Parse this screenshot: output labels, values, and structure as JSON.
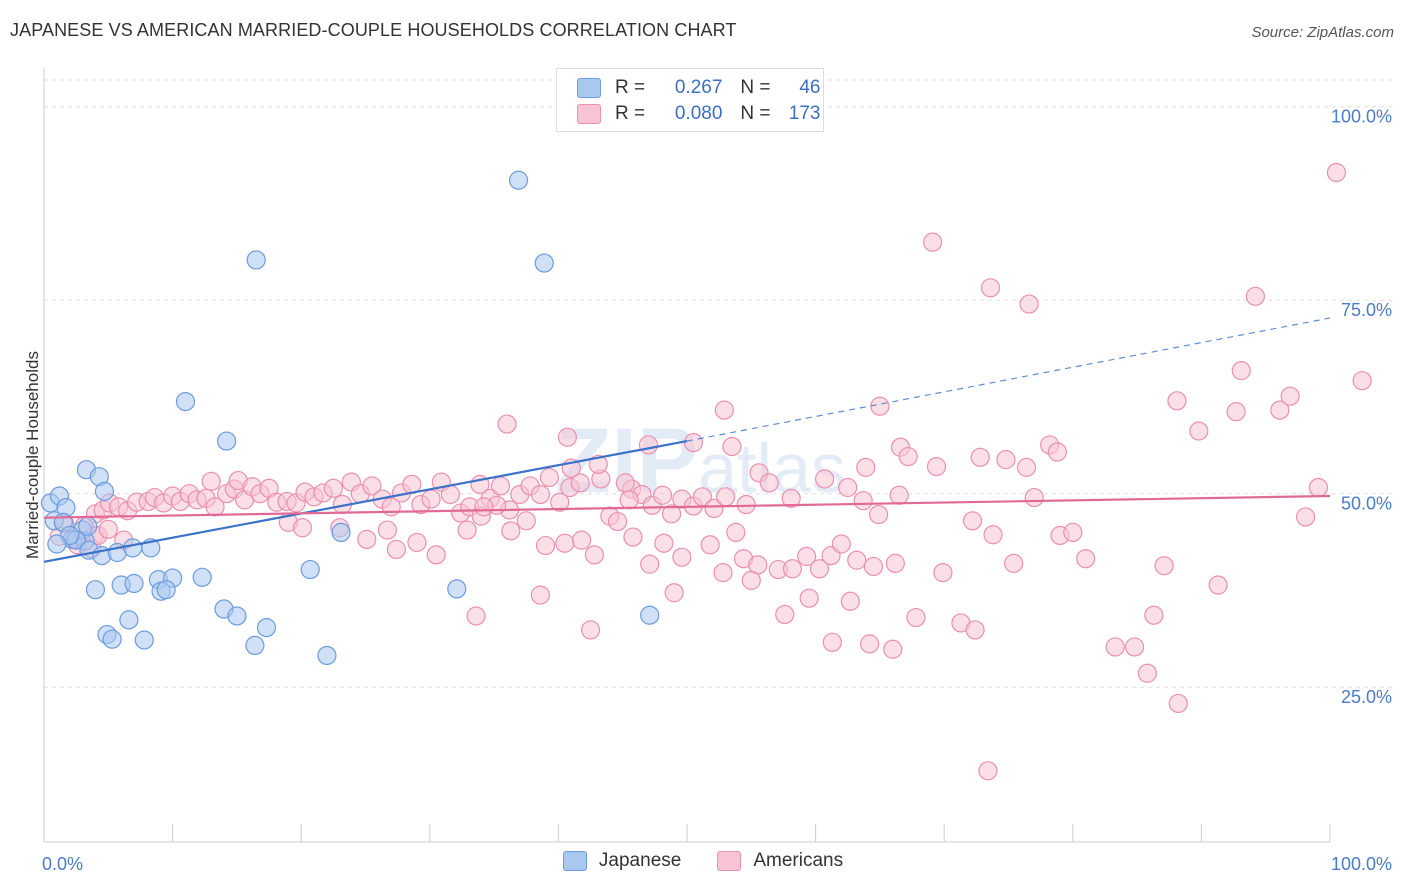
{
  "title": "JAPANESE VS AMERICAN MARRIED-COUPLE HOUSEHOLDS CORRELATION CHART",
  "source": "Source: ZipAtlas.com",
  "watermark": "ZIPatlas",
  "legend": {
    "japanese": {
      "r_label": "R =",
      "r_value": "0.267",
      "n_label": "N =",
      "n_value": "46"
    },
    "americans": {
      "r_label": "R =",
      "r_value": "0.080",
      "n_label": "N =",
      "n_value": "173"
    }
  },
  "colors": {
    "japanese_fill": "#a9c8f0",
    "japanese_stroke": "#6b9be0",
    "japanese_line": "#3a72c8",
    "americans_fill": "#f8c4d4",
    "americans_stroke": "#ec8fb0",
    "americans_line": "#e06a95",
    "grid": "#dddddd",
    "axis_label": "#4a7cc9"
  },
  "chart_data": {
    "type": "scatter",
    "title": "JAPANESE VS AMERICAN MARRIED-COUPLE HOUSEHOLDS CORRELATION CHART",
    "xlabel": "",
    "ylabel": "Married-couple Households",
    "xlim": [
      0,
      100
    ],
    "ylim": [
      5,
      105
    ],
    "x_tick_labels": [
      "0.0%",
      "100.0%"
    ],
    "y_ticks": [
      25,
      50,
      75,
      100
    ],
    "y_tick_labels": [
      "25.0%",
      "50.0%",
      "75.0%",
      "100.0%"
    ],
    "grid": "horizontal dashed",
    "legend_position": "top-center and bottom",
    "series": [
      {
        "name": "Japanese",
        "r": 0.267,
        "n": 46,
        "trend": {
          "x0": 0,
          "y0": 41.2,
          "x1": 50,
          "y1": 56.8,
          "dashed_to_x": 100,
          "dashed_to_y": 72.7
        },
        "points": [
          [
            0.5,
            48.8
          ],
          [
            1.2,
            49.7
          ],
          [
            1.7,
            48.2
          ],
          [
            0.8,
            46.5
          ],
          [
            1.5,
            46.3
          ],
          [
            2.2,
            44.1
          ],
          [
            3.0,
            45.3
          ],
          [
            3.2,
            43.9
          ],
          [
            2.5,
            44.0
          ],
          [
            3.4,
            45.8
          ],
          [
            3.3,
            53.1
          ],
          [
            4.3,
            52.2
          ],
          [
            4.7,
            50.3
          ],
          [
            3.5,
            42.7
          ],
          [
            4.5,
            42.0
          ],
          [
            5.7,
            42.4
          ],
          [
            6.9,
            43.0
          ],
          [
            8.3,
            43.0
          ],
          [
            4.0,
            37.6
          ],
          [
            6.0,
            38.2
          ],
          [
            7.0,
            38.4
          ],
          [
            8.9,
            38.9
          ],
          [
            10.0,
            39.1
          ],
          [
            9.1,
            37.4
          ],
          [
            9.5,
            37.6
          ],
          [
            12.3,
            39.2
          ],
          [
            6.6,
            33.7
          ],
          [
            4.9,
            31.8
          ],
          [
            5.3,
            31.2
          ],
          [
            7.8,
            31.1
          ],
          [
            14.0,
            35.1
          ],
          [
            15.0,
            34.2
          ],
          [
            17.3,
            32.7
          ],
          [
            16.4,
            30.4
          ],
          [
            22.0,
            29.1
          ],
          [
            14.2,
            56.8
          ],
          [
            11.0,
            61.9
          ],
          [
            16.5,
            80.2
          ],
          [
            20.7,
            40.2
          ],
          [
            23.1,
            45.0
          ],
          [
            32.1,
            37.7
          ],
          [
            36.9,
            90.5
          ],
          [
            38.9,
            79.8
          ],
          [
            47.1,
            34.3
          ],
          [
            2.0,
            44.6
          ],
          [
            1.0,
            43.5
          ]
        ]
      },
      {
        "name": "Americans",
        "r": 0.08,
        "n": 173,
        "trend": {
          "x0": 0,
          "y0": 46.9,
          "x1": 100,
          "y1": 49.7
        },
        "points": [
          [
            1.6,
            46.1
          ],
          [
            3.1,
            45.8
          ],
          [
            4.0,
            47.4
          ],
          [
            3.9,
            44.6
          ],
          [
            2.4,
            44.1
          ],
          [
            1.2,
            44.5
          ],
          [
            4.6,
            47.9
          ],
          [
            5.1,
            48.8
          ],
          [
            5.8,
            48.3
          ],
          [
            6.5,
            47.8
          ],
          [
            7.2,
            48.9
          ],
          [
            8.1,
            49.0
          ],
          [
            8.6,
            49.5
          ],
          [
            9.3,
            48.8
          ],
          [
            10.0,
            49.7
          ],
          [
            10.6,
            49.0
          ],
          [
            11.3,
            50.0
          ],
          [
            11.9,
            49.2
          ],
          [
            12.6,
            49.4
          ],
          [
            13.3,
            48.3
          ],
          [
            13.0,
            51.6
          ],
          [
            14.2,
            50.0
          ],
          [
            14.8,
            50.6
          ],
          [
            15.1,
            51.7
          ],
          [
            15.6,
            49.2
          ],
          [
            16.2,
            50.9
          ],
          [
            16.8,
            50.0
          ],
          [
            17.5,
            50.7
          ],
          [
            18.1,
            48.9
          ],
          [
            18.9,
            49.0
          ],
          [
            19.6,
            48.8
          ],
          [
            20.3,
            50.2
          ],
          [
            21.0,
            49.6
          ],
          [
            21.7,
            50.1
          ],
          [
            22.5,
            50.7
          ],
          [
            23.2,
            48.6
          ],
          [
            23.9,
            51.5
          ],
          [
            24.6,
            50.0
          ],
          [
            25.5,
            51.0
          ],
          [
            26.3,
            49.3
          ],
          [
            27.0,
            48.3
          ],
          [
            27.8,
            50.1
          ],
          [
            28.6,
            51.2
          ],
          [
            29.3,
            48.6
          ],
          [
            30.1,
            49.3
          ],
          [
            30.9,
            51.5
          ],
          [
            31.6,
            49.9
          ],
          [
            32.4,
            47.5
          ],
          [
            33.1,
            48.3
          ],
          [
            33.9,
            51.2
          ],
          [
            34.7,
            49.4
          ],
          [
            35.5,
            51.0
          ],
          [
            36.2,
            47.9
          ],
          [
            37.0,
            49.9
          ],
          [
            37.8,
            51.0
          ],
          [
            38.6,
            49.9
          ],
          [
            39.3,
            52.1
          ],
          [
            40.1,
            48.9
          ],
          [
            40.9,
            50.8
          ],
          [
            41.7,
            51.4
          ],
          [
            43.3,
            51.9
          ],
          [
            44.0,
            47.1
          ],
          [
            45.7,
            50.6
          ],
          [
            46.5,
            49.9
          ],
          [
            47.3,
            48.5
          ],
          [
            48.8,
            47.4
          ],
          [
            49.6,
            49.3
          ],
          [
            50.5,
            48.4
          ],
          [
            51.2,
            49.6
          ],
          [
            52.1,
            48.1
          ],
          [
            53.0,
            49.6
          ],
          [
            54.6,
            48.6
          ],
          [
            55.6,
            52.7
          ],
          [
            56.4,
            51.4
          ],
          [
            58.1,
            49.4
          ],
          [
            60.7,
            51.9
          ],
          [
            62.5,
            50.8
          ],
          [
            63.7,
            49.1
          ],
          [
            64.9,
            47.3
          ],
          [
            66.5,
            49.8
          ],
          [
            3.7,
            42.9
          ],
          [
            4.2,
            44.6
          ],
          [
            5.0,
            45.4
          ],
          [
            6.2,
            44.0
          ],
          [
            2.6,
            43.4
          ],
          [
            19.0,
            46.3
          ],
          [
            20.1,
            45.6
          ],
          [
            23.0,
            45.6
          ],
          [
            25.1,
            44.1
          ],
          [
            26.7,
            45.3
          ],
          [
            27.4,
            42.8
          ],
          [
            29.0,
            43.7
          ],
          [
            30.5,
            42.1
          ],
          [
            32.9,
            45.3
          ],
          [
            34.0,
            47.1
          ],
          [
            35.2,
            48.5
          ],
          [
            36.3,
            45.2
          ],
          [
            37.5,
            46.5
          ],
          [
            39.0,
            43.3
          ],
          [
            40.5,
            43.6
          ],
          [
            41.8,
            44.0
          ],
          [
            42.8,
            42.1
          ],
          [
            44.6,
            46.4
          ],
          [
            45.8,
            44.4
          ],
          [
            47.1,
            40.9
          ],
          [
            48.2,
            43.6
          ],
          [
            49.6,
            41.8
          ],
          [
            51.8,
            43.4
          ],
          [
            53.8,
            45.0
          ],
          [
            54.4,
            41.6
          ],
          [
            55.5,
            40.8
          ],
          [
            57.1,
            40.2
          ],
          [
            58.2,
            40.3
          ],
          [
            59.3,
            41.9
          ],
          [
            60.3,
            40.3
          ],
          [
            61.2,
            42.0
          ],
          [
            62.0,
            43.5
          ],
          [
            63.2,
            41.4
          ],
          [
            64.5,
            40.6
          ],
          [
            66.2,
            41.0
          ],
          [
            33.6,
            34.2
          ],
          [
            38.6,
            36.9
          ],
          [
            42.5,
            32.4
          ],
          [
            49.0,
            37.2
          ],
          [
            52.8,
            39.8
          ],
          [
            55.0,
            38.8
          ],
          [
            57.6,
            34.4
          ],
          [
            59.5,
            36.5
          ],
          [
            61.3,
            30.8
          ],
          [
            62.7,
            36.1
          ],
          [
            64.2,
            30.6
          ],
          [
            66.0,
            29.9
          ],
          [
            67.8,
            34.0
          ],
          [
            69.9,
            39.8
          ],
          [
            71.3,
            33.3
          ],
          [
            72.2,
            46.5
          ],
          [
            73.8,
            44.7
          ],
          [
            75.4,
            41.0
          ],
          [
            77.0,
            49.5
          ],
          [
            79.0,
            44.6
          ],
          [
            80.0,
            45.0
          ],
          [
            81.0,
            41.6
          ],
          [
            83.3,
            30.2
          ],
          [
            84.8,
            30.2
          ],
          [
            85.8,
            26.8
          ],
          [
            86.3,
            34.3
          ],
          [
            87.1,
            40.7
          ],
          [
            88.2,
            22.9
          ],
          [
            91.3,
            38.2
          ],
          [
            72.4,
            32.4
          ],
          [
            73.4,
            14.2
          ],
          [
            47.0,
            56.3
          ],
          [
            50.5,
            56.6
          ],
          [
            52.9,
            60.8
          ],
          [
            53.5,
            56.1
          ],
          [
            36.0,
            59.0
          ],
          [
            40.7,
            57.3
          ],
          [
            41.0,
            53.3
          ],
          [
            43.1,
            53.8
          ],
          [
            45.2,
            51.4
          ],
          [
            63.9,
            53.4
          ],
          [
            66.6,
            56.0
          ],
          [
            67.2,
            54.8
          ],
          [
            69.4,
            53.5
          ],
          [
            72.8,
            54.7
          ],
          [
            74.8,
            54.4
          ],
          [
            76.4,
            53.4
          ],
          [
            78.2,
            56.3
          ],
          [
            78.8,
            55.4
          ],
          [
            65.0,
            61.3
          ],
          [
            69.1,
            82.5
          ],
          [
            73.6,
            76.6
          ],
          [
            76.6,
            74.5
          ],
          [
            88.1,
            62.0
          ],
          [
            89.8,
            58.1
          ],
          [
            92.7,
            60.6
          ],
          [
            93.1,
            65.9
          ],
          [
            94.2,
            75.5
          ],
          [
            96.1,
            60.8
          ],
          [
            96.9,
            62.6
          ],
          [
            98.1,
            47.0
          ],
          [
            99.1,
            50.8
          ],
          [
            100.5,
            91.5
          ],
          [
            102.5,
            64.6
          ],
          [
            34.2,
            48.3
          ],
          [
            45.5,
            49.2
          ],
          [
            48.1,
            49.8
          ]
        ]
      }
    ]
  }
}
